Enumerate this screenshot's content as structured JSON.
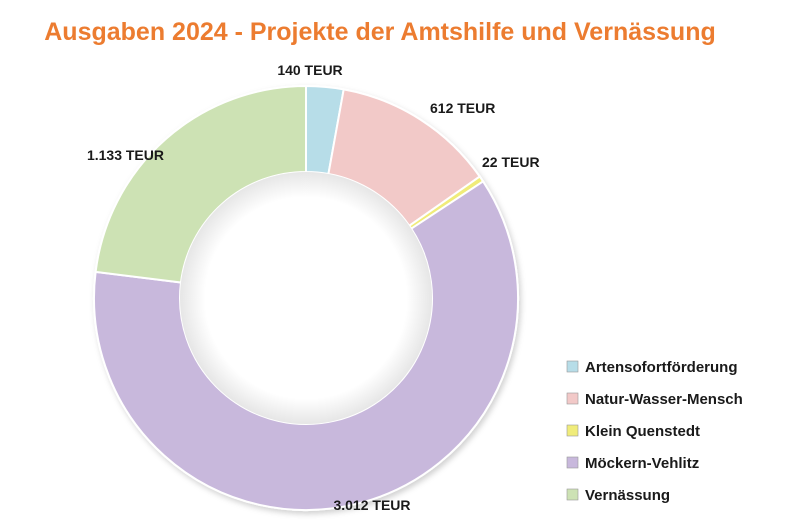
{
  "chart_data": {
    "type": "pie",
    "variant": "donut",
    "title": "Ausgaben 2024 - Projekte der Amtshilfe und Vernässung",
    "unit": "TEUR",
    "legend_position": "bottom-right",
    "slices": [
      {
        "name": "Artensofortförderung",
        "value": 140,
        "label": "140 TEUR",
        "color": "#b7dde8"
      },
      {
        "name": "Natur-Wasser-Mensch",
        "value": 612,
        "label": "612 TEUR",
        "color": "#f2c9c8"
      },
      {
        "name": "Klein Quenstedt",
        "value": 22,
        "label": "22 TEUR",
        "color": "#f0ec7a"
      },
      {
        "name": "Möckern-Vehlitz",
        "value": 3012,
        "label": "3.012 TEUR",
        "color": "#c8b8dc"
      },
      {
        "name": "Vernässung",
        "value": 1133,
        "label": "1.133 TEUR",
        "color": "#cde2b4"
      }
    ]
  }
}
